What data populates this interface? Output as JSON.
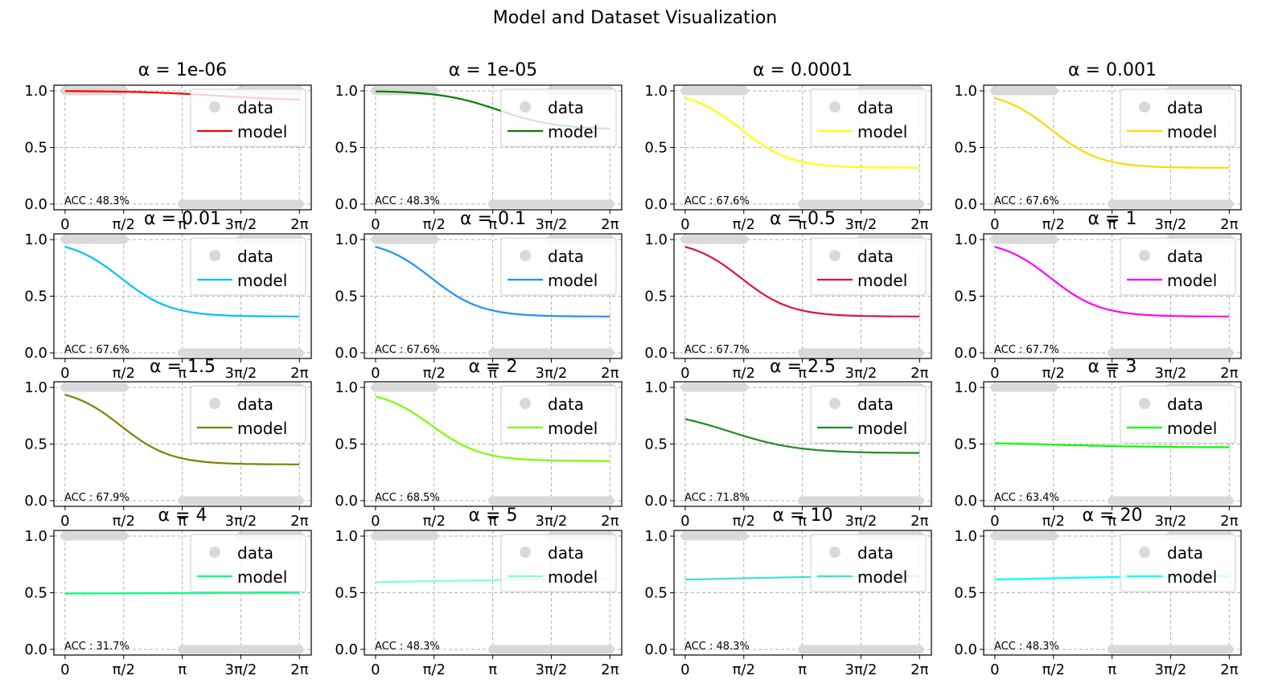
{
  "title": "Model and Dataset Visualization",
  "chart_data": {
    "type": "line",
    "grid": true,
    "legend_placement": "upper right",
    "x_ticks": [
      "0",
      "π/2",
      "π",
      "3π/2",
      "2π"
    ],
    "x_tick_values": [
      0,
      1.5708,
      3.1416,
      4.7124,
      6.2832
    ],
    "xlim": [
      -0.3,
      6.6
    ],
    "y_ticks": [
      "0.0",
      "0.5",
      "1.0"
    ],
    "y_tick_values": [
      0,
      0.5,
      1
    ],
    "ylim": [
      -0.05,
      1.05
    ],
    "legend": {
      "data": "data",
      "model": "model"
    },
    "data_color": "#d9d9d9",
    "data_points": [
      {
        "x": [
          0,
          1.57
        ],
        "y": 1.0
      },
      {
        "x": [
          3.14,
          6.28
        ],
        "y": 0.0
      },
      {
        "x": [
          4.71,
          6.28
        ],
        "y": 1.0
      }
    ],
    "panels": [
      {
        "title": "α = 1e-06",
        "color": "#ff0000",
        "acc": "ACC : 48.3%",
        "model": {
          "start": 1.0,
          "end": 0.91,
          "mid": 4.2,
          "k": 0.9
        }
      },
      {
        "title": "α = 1e-05",
        "color": "#008000",
        "acc": "ACC : 48.3%",
        "model": {
          "start": 1.0,
          "end": 0.66,
          "mid": 3.3,
          "k": 1.3
        }
      },
      {
        "title": "α = 0.0001",
        "color": "#ffff00",
        "acc": "ACC : 67.6%",
        "model": {
          "start": 1.0,
          "end": 0.32,
          "mid": 1.5,
          "k": 1.5
        }
      },
      {
        "title": "α = 0.001",
        "color": "#ffd700",
        "acc": "ACC : 67.6%",
        "model": {
          "start": 1.0,
          "end": 0.32,
          "mid": 1.5,
          "k": 1.5
        }
      },
      {
        "title": "α = 0.01",
        "color": "#00bfff",
        "acc": "ACC : 67.6%",
        "model": {
          "start": 1.0,
          "end": 0.32,
          "mid": 1.5,
          "k": 1.5
        }
      },
      {
        "title": "α = 0.1",
        "color": "#1e90ff",
        "acc": "ACC : 67.6%",
        "model": {
          "start": 1.0,
          "end": 0.32,
          "mid": 1.5,
          "k": 1.5
        }
      },
      {
        "title": "α = 0.5",
        "color": "#dc143c",
        "acc": "ACC : 67.7%",
        "model": {
          "start": 1.0,
          "end": 0.32,
          "mid": 1.5,
          "k": 1.5
        }
      },
      {
        "title": "α = 1",
        "color": "#ff00ff",
        "acc": "ACC : 67.7%",
        "model": {
          "start": 1.0,
          "end": 0.32,
          "mid": 1.5,
          "k": 1.5
        }
      },
      {
        "title": "α = 1.5",
        "color": "#808000",
        "acc": "ACC : 67.9%",
        "model": {
          "start": 1.0,
          "end": 0.32,
          "mid": 1.5,
          "k": 1.5
        }
      },
      {
        "title": "α = 2",
        "color": "#7cfc00",
        "acc": "ACC : 68.5%",
        "model": {
          "start": 0.98,
          "end": 0.35,
          "mid": 1.5,
          "k": 1.5
        }
      },
      {
        "title": "α = 2.5",
        "color": "#228b22",
        "acc": "ACC : 71.8%",
        "model": {
          "start": 0.8,
          "end": 0.42,
          "mid": 1.2,
          "k": 1.1
        }
      },
      {
        "title": "α = 3",
        "color": "#00ff00",
        "acc": "ACC : 63.4%",
        "model": {
          "start": 0.52,
          "end": 0.47,
          "mid": 1.5,
          "k": 0.7
        }
      },
      {
        "title": "α = 4",
        "color": "#00ff7f",
        "acc": "ACC : 31.7%",
        "model": {
          "start": 0.49,
          "end": 0.5,
          "mid": 1.5,
          "k": 0.6
        }
      },
      {
        "title": "α = 5",
        "color": "#7fffd4",
        "acc": "ACC : 48.3%",
        "model": {
          "start": 0.58,
          "end": 0.62,
          "mid": 1.2,
          "k": 0.6
        }
      },
      {
        "title": "α = 10",
        "color": "#40e0d0",
        "acc": "ACC : 48.3%",
        "model": {
          "start": 0.6,
          "end": 0.65,
          "mid": 1.2,
          "k": 0.6
        }
      },
      {
        "title": "α = 20",
        "color": "#00ffff",
        "acc": "ACC : 48.3%",
        "model": {
          "start": 0.6,
          "end": 0.65,
          "mid": 1.2,
          "k": 0.6
        }
      }
    ]
  }
}
